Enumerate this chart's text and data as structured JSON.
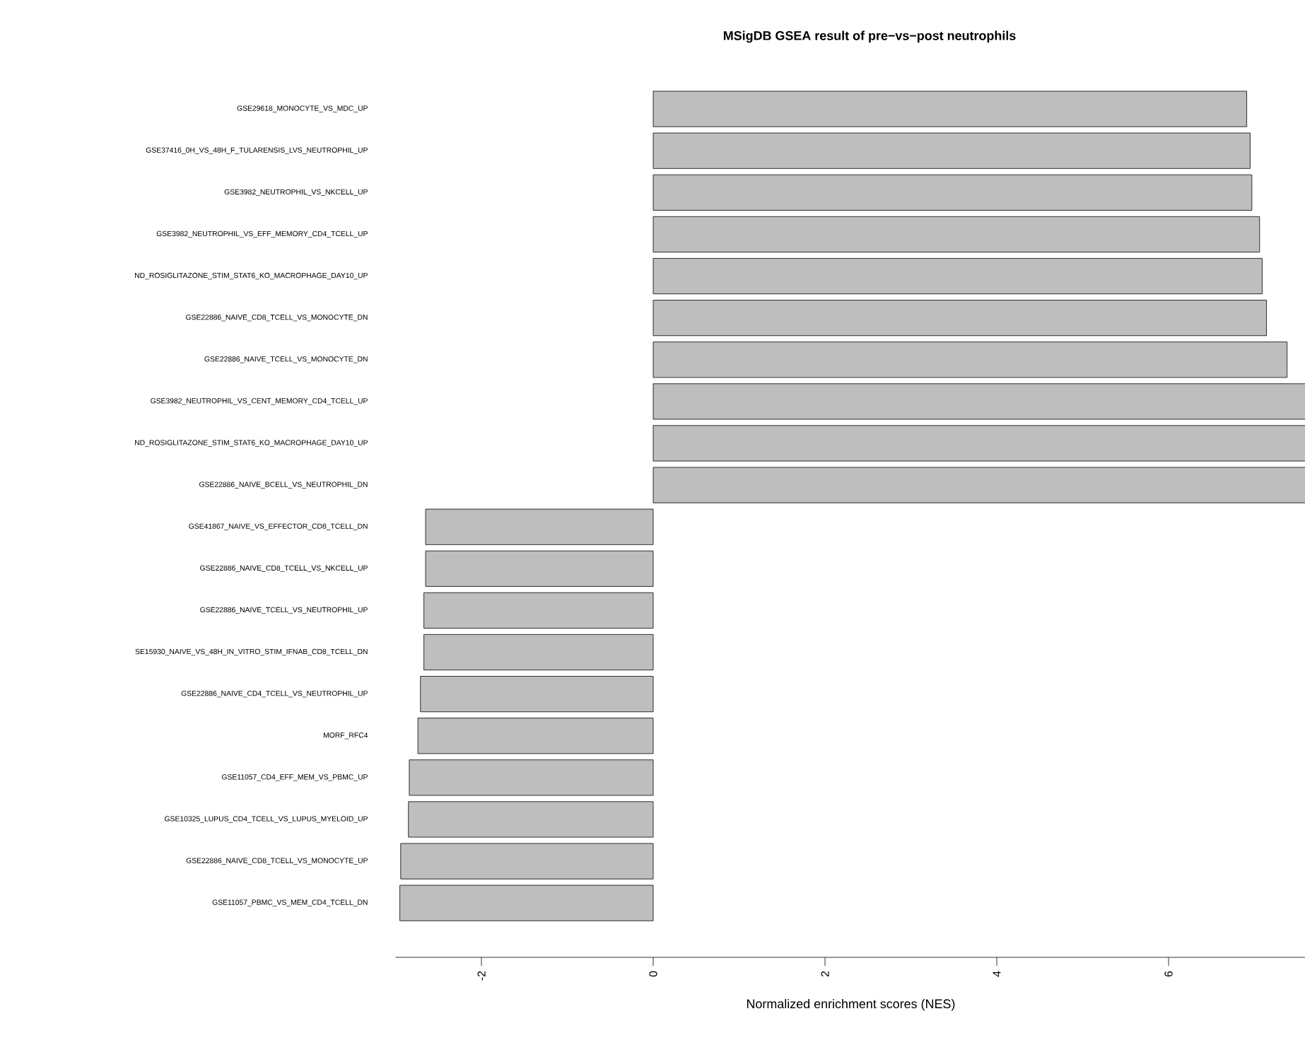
{
  "chart_data": {
    "type": "bar",
    "orientation": "horizontal",
    "title": "MSigDB GSEA result of pre−vs−post neutrophils",
    "xlabel": "Normalized enrichment scores (NES)",
    "categories": [
      "GSE29618_MONOCYTE_VS_MDC_UP",
      "GSE37416_0H_VS_48H_F_TULARENSIS_LVS_NEUTROPHIL_UP",
      "GSE3982_NEUTROPHIL_VS_NKCELL_UP",
      "GSE3982_NEUTROPHIL_VS_EFF_MEMORY_CD4_TCELL_UP",
      "ND_ROSIGLITAZONE_STIM_STAT6_KO_MACROPHAGE_DAY10_UP",
      "GSE22886_NAIVE_CD8_TCELL_VS_MONOCYTE_DN",
      "GSE22886_NAIVE_TCELL_VS_MONOCYTE_DN",
      "GSE3982_NEUTROPHIL_VS_CENT_MEMORY_CD4_TCELL_UP",
      "ND_ROSIGLITAZONE_STIM_STAT6_KO_MACROPHAGE_DAY10_UP",
      "GSE22886_NAIVE_BCELL_VS_NEUTROPHIL_DN",
      "GSE41867_NAIVE_VS_EFFECTOR_CD8_TCELL_DN",
      "GSE22886_NAIVE_CD8_TCELL_VS_NKCELL_UP",
      "GSE22886_NAIVE_TCELL_VS_NEUTROPHIL_UP",
      "SE15930_NAIVE_VS_48H_IN_VITRO_STIM_IFNAB_CD8_TCELL_DN",
      "GSE22886_NAIVE_CD4_TCELL_VS_NEUTROPHIL_UP",
      "MORF_RFC4",
      "GSE11057_CD4_EFF_MEM_VS_PBMC_UP",
      "GSE10325_LUPUS_CD4_TCELL_VS_LUPUS_MYELOID_UP",
      "GSE22886_NAIVE_CD8_TCELL_VS_MONOCYTE_UP",
      "GSE11057_PBMC_VS_MEM_CD4_TCELL_DN"
    ],
    "values": [
      6.91,
      6.95,
      6.97,
      7.06,
      7.09,
      7.14,
      7.38,
      7.6,
      7.6,
      7.6,
      -2.65,
      -2.65,
      -2.67,
      -2.67,
      -2.71,
      -2.74,
      -2.84,
      -2.85,
      -2.94,
      -2.95
    ],
    "color": "#bebebe",
    "xlim": [
      -3.0,
      7.6
    ],
    "xticks": [
      -2,
      0,
      2,
      4,
      6
    ]
  }
}
